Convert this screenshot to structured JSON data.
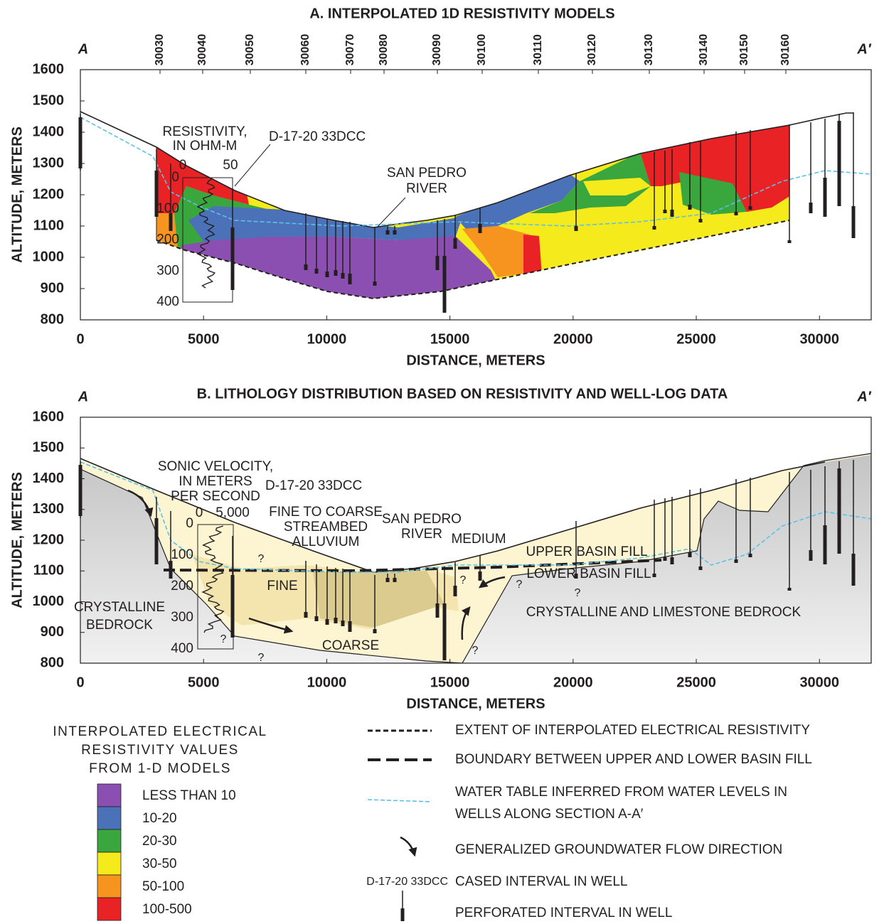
{
  "panel_a": {
    "title": "A. INTERPOLATED 1D RESISTIVITY MODELS",
    "start": "A",
    "end": "A′",
    "stations": [
      "30030",
      "30040",
      "30050",
      "30060",
      "30070",
      "30080",
      "30090",
      "30100",
      "30110",
      "30120",
      "30130",
      "30140",
      "30150",
      "30160"
    ],
    "y_label": "ALTITUDE, METERS",
    "x_label": "DISTANCE, METERS",
    "xlim": [
      0,
      32100
    ],
    "ylim": [
      800,
      1600
    ],
    "xticks": [
      0,
      5000,
      10000,
      15000,
      20000,
      25000,
      30000
    ],
    "yticks": [
      800,
      900,
      1000,
      1100,
      1200,
      1300,
      1400,
      1500,
      1600
    ],
    "annotations": [
      {
        "lines": [
          "RESISTIVITY,",
          "IN OHM-M"
        ]
      },
      {
        "lines": [
          "D-17-20 33DCC"
        ]
      },
      {
        "lines": [
          "SAN PEDRO",
          "RIVER"
        ]
      }
    ],
    "inset": {
      "top_ticks": [
        0,
        50
      ],
      "depth_ticks": [
        0,
        100,
        200,
        300,
        400
      ]
    }
  },
  "panel_b": {
    "title": "B. LITHOLOGY DISTRIBUTION BASED ON RESISTIVITY AND WELL-LOG DATA",
    "start": "A",
    "end": "A′",
    "y_label": "ALTITUDE, METERS",
    "x_label": "DISTANCE, METERS",
    "xlim": [
      0,
      32100
    ],
    "ylim": [
      800,
      1600
    ],
    "xticks": [
      0,
      5000,
      10000,
      15000,
      20000,
      25000,
      30000
    ],
    "yticks": [
      800,
      900,
      1000,
      1100,
      1200,
      1300,
      1400,
      1500,
      1600
    ],
    "annotations": [
      {
        "lines": [
          "SONIC VELOCITY,",
          "IN METERS",
          "PER SECOND"
        ]
      },
      {
        "lines": [
          "D-17-20 33DCC"
        ]
      },
      {
        "lines": [
          "FINE TO COARSE",
          "STREAMBED",
          "ALLUVIUM"
        ]
      },
      {
        "lines": [
          "SAN PEDRO",
          "RIVER"
        ]
      },
      {
        "lines": [
          "MEDIUM"
        ]
      },
      {
        "lines": [
          "UPPER BASIN FILL"
        ]
      },
      {
        "lines": [
          "LOWER BASIN FILL"
        ]
      },
      {
        "lines": [
          "FINE"
        ]
      },
      {
        "lines": [
          "CRYSTALLINE",
          "BEDROCK"
        ]
      },
      {
        "lines": [
          "COARSE"
        ]
      },
      {
        "lines": [
          "CRYSTALLINE AND LIMESTONE BEDROCK"
        ]
      }
    ],
    "question_marks": [
      "?",
      "?",
      "?",
      "?",
      "?",
      "?",
      "?"
    ],
    "inset": {
      "top_ticks": [
        0,
        "5,000"
      ],
      "depth_ticks": [
        0,
        100,
        200,
        300,
        400
      ]
    }
  },
  "legend_left": {
    "title": [
      "INTERPOLATED ELECTRICAL",
      "RESISTIVITY VALUES",
      "FROM 1-D MODELS"
    ],
    "items": [
      {
        "label": "LESS THAN 10",
        "color": "#8a4fb0"
      },
      {
        "label": "10-20",
        "color": "#4b72b8"
      },
      {
        "label": "20-30",
        "color": "#3aa63e"
      },
      {
        "label": "30-50",
        "color": "#f4ea1c"
      },
      {
        "label": "50-100",
        "color": "#f6941f"
      },
      {
        "label": "100-500",
        "color": "#e92226"
      }
    ]
  },
  "legend_right": {
    "items": [
      {
        "lines": [
          "EXTENT OF INTERPOLATED ELECTRICAL RESISTIVITY"
        ]
      },
      {
        "lines": [
          "BOUNDARY BETWEEN UPPER AND LOWER BASIN FILL"
        ]
      },
      {
        "lines": [
          "WATER TABLE INFERRED FROM WATER LEVELS IN",
          "WELLS ALONG SECTION A-A′"
        ]
      },
      {
        "lines": [
          "GENERALIZED GROUNDWATER FLOW DIRECTION"
        ]
      },
      {
        "lines": [
          "CASED INTERVAL IN WELL"
        ],
        "symbol_label": "D-17-20 33DCC"
      },
      {
        "lines": [
          "PERFORATED INTERVAL IN WELL"
        ]
      }
    ]
  }
}
